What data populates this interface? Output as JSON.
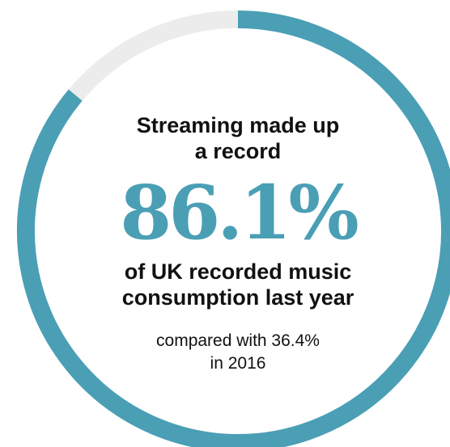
{
  "chart_data": {
    "type": "pie",
    "subtype": "donut",
    "value_percent": 86.1,
    "remainder_percent": 13.9,
    "colors": {
      "filled": "#4a9fb5",
      "track": "#ececec"
    }
  },
  "infographic": {
    "headline_line1": "Streaming made up",
    "headline_line2": "a record",
    "big_value": "86.1%",
    "subline_line1": "of UK recorded music",
    "subline_line2": "consumption last year",
    "compare_line1": "compared with 36.4%",
    "compare_line2": "in 2016"
  }
}
